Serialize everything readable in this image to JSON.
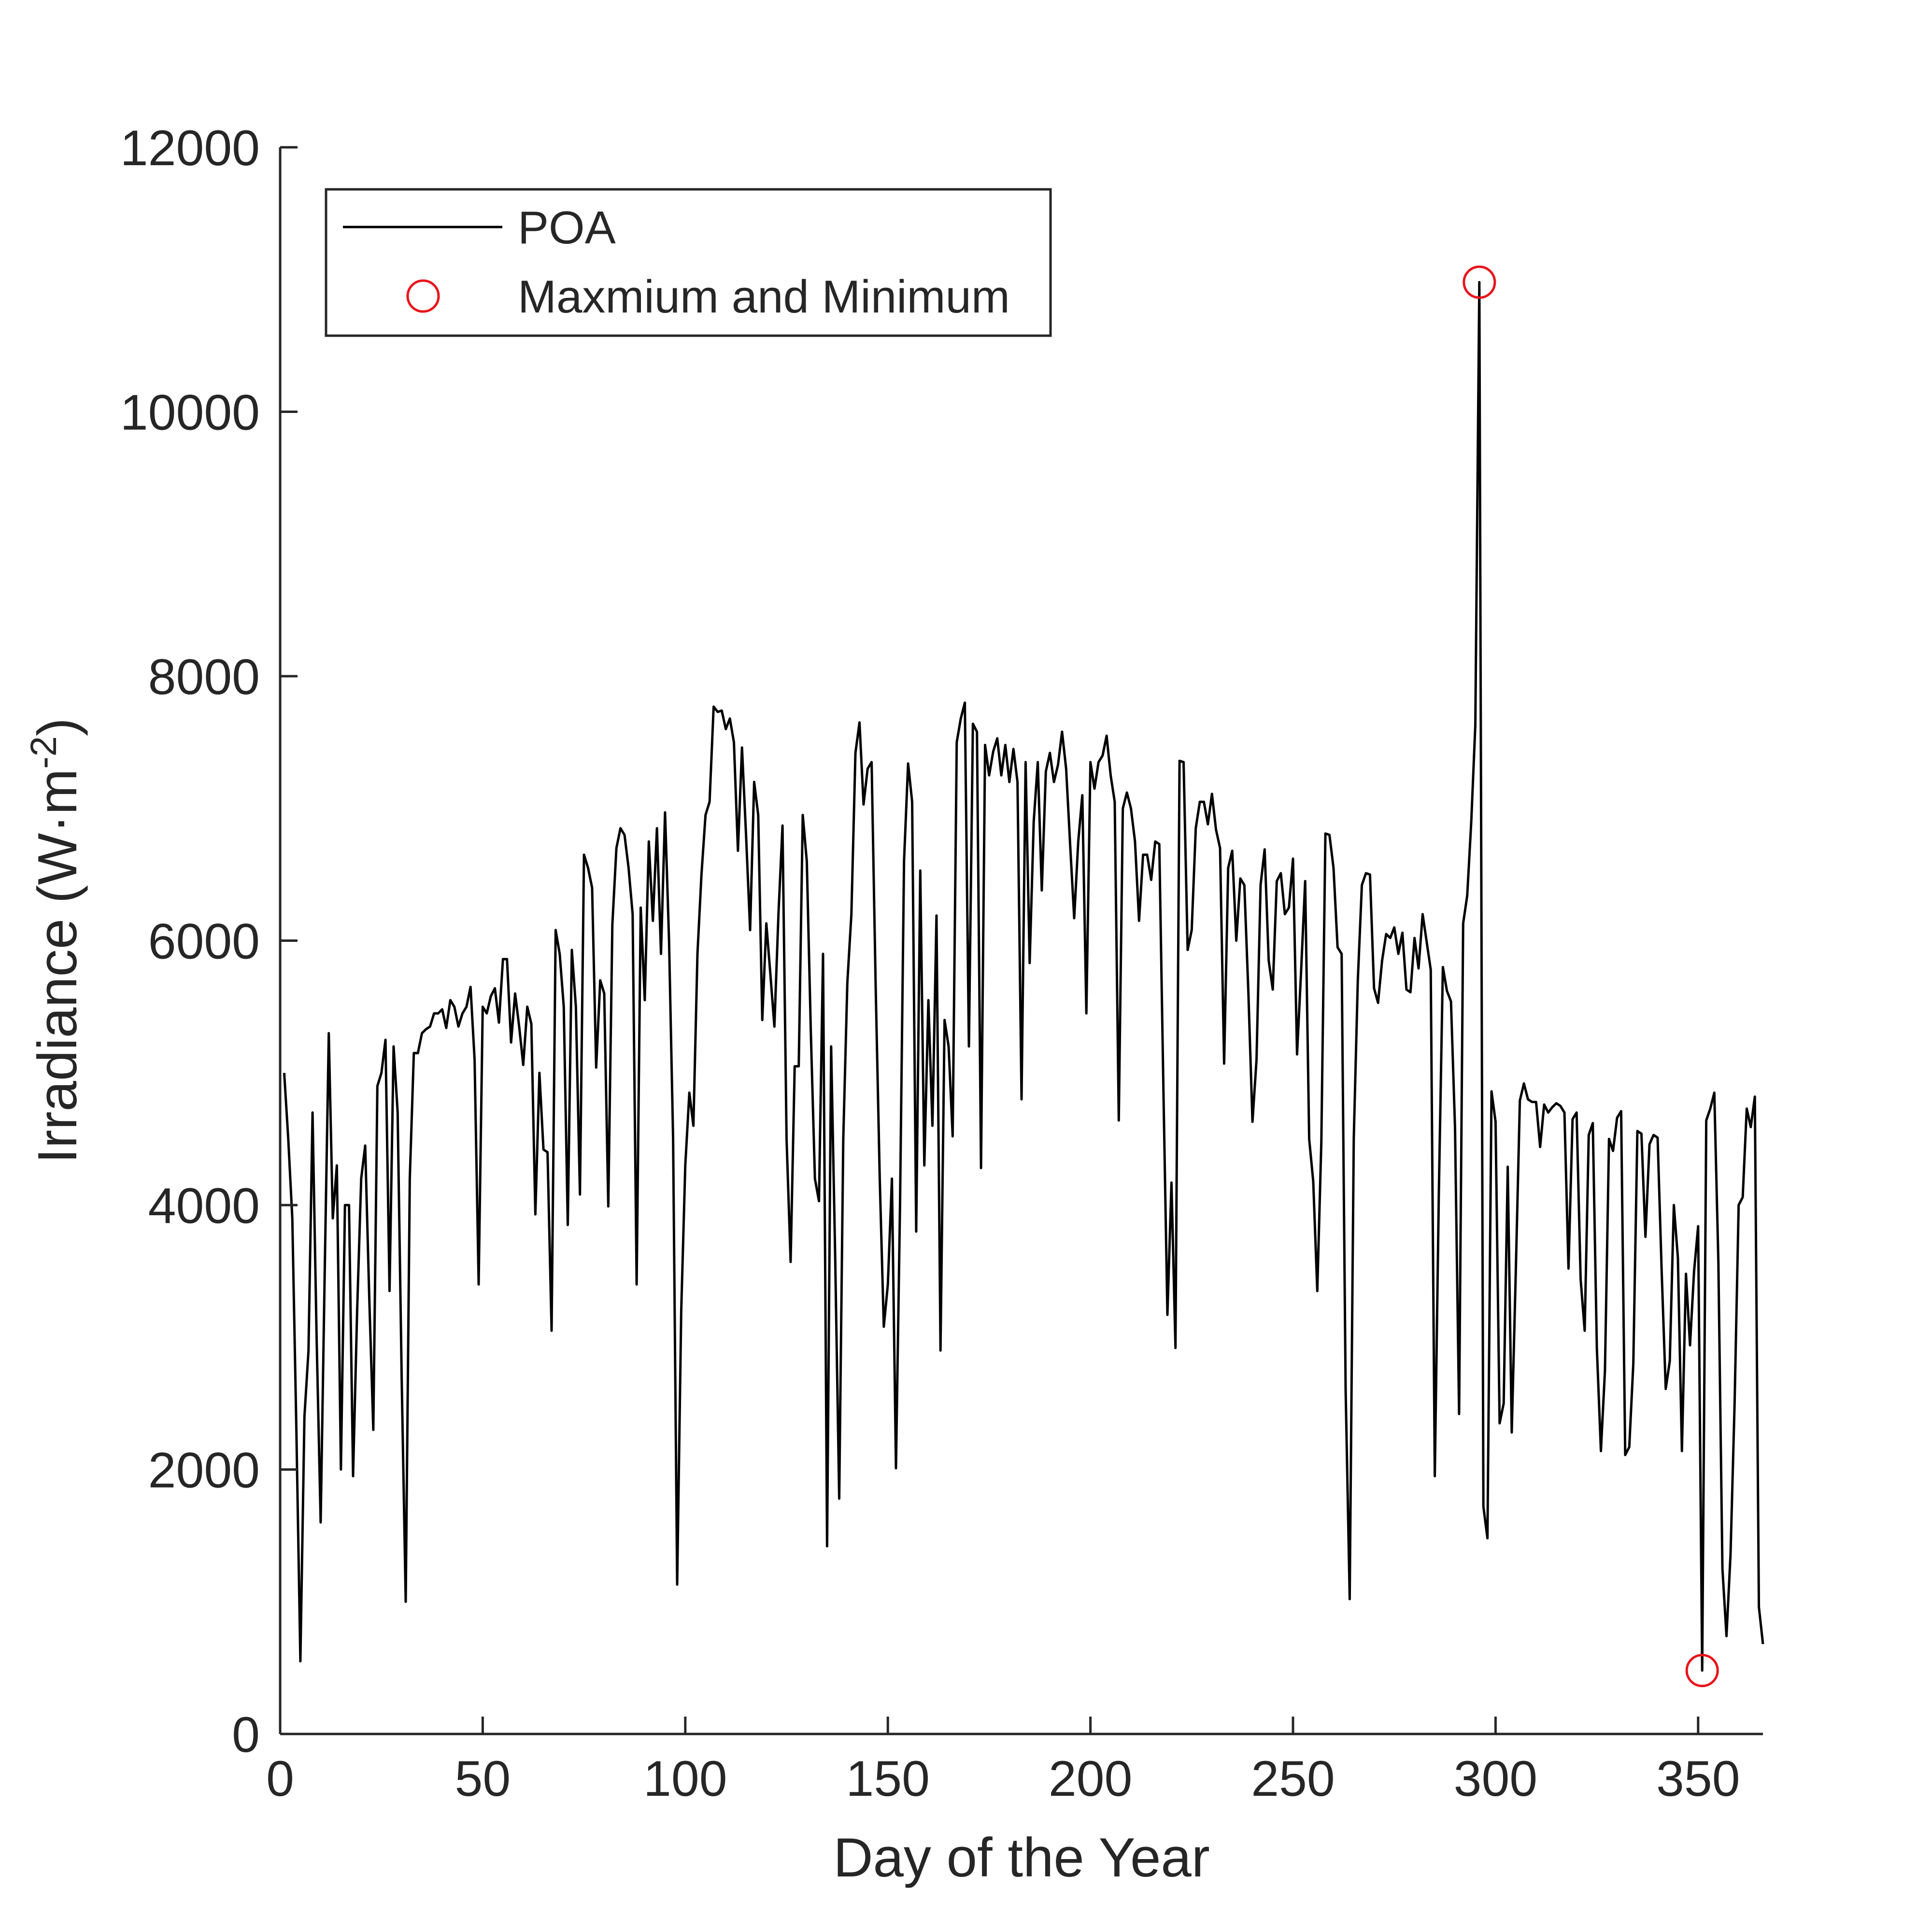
{
  "chart_data": {
    "type": "line",
    "title": "",
    "xlabel": "Day of the Year",
    "ylabel": {
      "main": "Irradiance (W·m",
      "exponent": "-2",
      "close": ")"
    },
    "xlim": [
      0,
      366
    ],
    "ylim": [
      0,
      12000
    ],
    "xticks": [
      0,
      50,
      100,
      150,
      200,
      250,
      300,
      350
    ],
    "yticks": [
      0,
      2000,
      4000,
      6000,
      8000,
      10000,
      12000
    ],
    "grid": false,
    "legend": {
      "placement": "top-left",
      "entries": [
        "POA",
        "Maxmium and Minimum"
      ]
    },
    "colors": {
      "line": "#000000",
      "marker": "#e8141b",
      "axis": "#262626"
    },
    "series": [
      {
        "name": "POA",
        "style": "line",
        "x_start": 1,
        "x_step": 1,
        "values": [
          5000,
          4500,
          3900,
          2300,
          550,
          2400,
          2900,
          4700,
          3000,
          1600,
          3500,
          5300,
          3900,
          4300,
          2000,
          4000,
          4000,
          1950,
          3200,
          4200,
          4450,
          3300,
          2300,
          4900,
          5000,
          5250,
          3350,
          5200,
          4700,
          2700,
          1000,
          4200,
          5150,
          5150,
          5300,
          5330,
          5350,
          5450,
          5450,
          5480,
          5340,
          5550,
          5500,
          5350,
          5450,
          5500,
          5650,
          5100,
          3400,
          5500,
          5450,
          5580,
          5640,
          5380,
          5860,
          5860,
          5230,
          5600,
          5350,
          5060,
          5500,
          5370,
          3930,
          5000,
          4420,
          4400,
          3050,
          6080,
          5900,
          5500,
          3850,
          5930,
          5500,
          4080,
          6650,
          6550,
          6400,
          5040,
          5700,
          5600,
          3990,
          6120,
          6700,
          6850,
          6800,
          6550,
          6200,
          3400,
          6250,
          5550,
          6750,
          6150,
          6850,
          5900,
          6970,
          6000,
          4500,
          1130,
          3200,
          4300,
          4850,
          4600,
          5900,
          6500,
          6950,
          7050,
          7770,
          7730,
          7740,
          7600,
          7680,
          7500,
          6680,
          7460,
          6800,
          6080,
          7200,
          6950,
          5400,
          6130,
          5750,
          5350,
          6200,
          6870,
          4500,
          3570,
          5050,
          5050,
          6950,
          6600,
          5300,
          4200,
          4030,
          5900,
          1420,
          5200,
          3600,
          1780,
          4500,
          5680,
          6200,
          7420,
          7650,
          7030,
          7300,
          7350,
          5650,
          4200,
          3080,
          3400,
          4200,
          2010,
          4000,
          6600,
          7340,
          7050,
          3800,
          6530,
          4300,
          5550,
          4600,
          6190,
          2900,
          5400,
          5200,
          4520,
          7500,
          7680,
          7800,
          5200,
          7640,
          7580,
          4280,
          7480,
          7250,
          7430,
          7530,
          7250,
          7480,
          7200,
          7450,
          7200,
          4800,
          7350,
          5830,
          6900,
          7350,
          6380,
          7280,
          7420,
          7200,
          7330,
          7580,
          7300,
          6720,
          6170,
          6750,
          7100,
          5450,
          7350,
          7150,
          7350,
          7400,
          7550,
          7250,
          7050,
          4640,
          7000,
          7120,
          7000,
          6750,
          6150,
          6650,
          6650,
          6460,
          6750,
          6730,
          4900,
          3170,
          4170,
          2920,
          7360,
          7350,
          5930,
          6080,
          6850,
          7050,
          7050,
          6880,
          7110,
          6840,
          6700,
          5070,
          6550,
          6680,
          6000,
          6470,
          6420,
          5600,
          4630,
          5100,
          6420,
          6690,
          5850,
          5630,
          6450,
          6510,
          6200,
          6250,
          6620,
          5140,
          5770,
          6450,
          4500,
          4180,
          3350,
          4480,
          6810,
          6800,
          6550,
          5950,
          5900,
          2600,
          1020,
          4500,
          5700,
          6420,
          6510,
          6500,
          5640,
          5530,
          5850,
          6050,
          6020,
          6100,
          5900,
          6060,
          5630,
          5610,
          6020,
          5790,
          6200,
          5990,
          5780,
          1950,
          4100,
          5800,
          5620,
          5540,
          4580,
          2420,
          6130,
          6340,
          6900,
          7630,
          10980,
          1720,
          1480,
          4860,
          4630,
          2350,
          2500,
          4290,
          2280,
          3500,
          4790,
          4920,
          4800,
          4780,
          4780,
          4440,
          4760,
          4700,
          4740,
          4770,
          4750,
          4700,
          3520,
          4650,
          4700,
          3440,
          3050,
          4530,
          4620,
          2920,
          2140,
          2750,
          4500,
          4410,
          4660,
          4710,
          2110,
          2170,
          2800,
          4560,
          4540,
          3760,
          4460,
          4530,
          4510,
          3500,
          2610,
          2820,
          4000,
          3600,
          2140,
          3480,
          2940,
          3500,
          3840,
          480,
          4640,
          4730,
          4850,
          3570,
          1250,
          740,
          1360,
          2500,
          4000,
          4060,
          4730,
          4590,
          4820,
          960,
          680
        ]
      },
      {
        "name": "Maxmium and Minimum",
        "style": "marker",
        "points": [
          {
            "x": 296,
            "y": 10980
          },
          {
            "x": 351,
            "y": 480
          }
        ]
      }
    ]
  }
}
